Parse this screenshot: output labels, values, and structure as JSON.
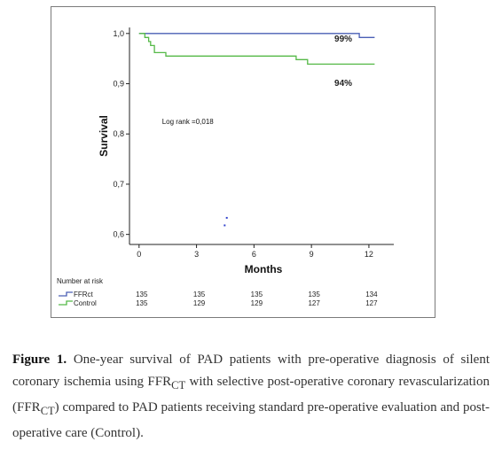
{
  "chart_data": {
    "type": "line",
    "xlabel": "Months",
    "ylabel": "Survival",
    "xlim": [
      -0.5,
      13.3
    ],
    "ylim": [
      0.58,
      1.012
    ],
    "x_ticks": [
      {
        "value": 0,
        "label": "0"
      },
      {
        "value": 3,
        "label": "3"
      },
      {
        "value": 6,
        "label": "6"
      },
      {
        "value": 9,
        "label": "9"
      },
      {
        "value": 12,
        "label": "12"
      }
    ],
    "y_ticks": [
      {
        "value": 1.0,
        "label": "1,0"
      },
      {
        "value": 0.9,
        "label": "0,9"
      },
      {
        "value": 0.8,
        "label": "0,8"
      },
      {
        "value": 0.7,
        "label": "0,7"
      },
      {
        "value": 0.6,
        "label": "0,6"
      }
    ],
    "series": [
      {
        "name": "FFRct",
        "color": "#4a5fb5",
        "step": true,
        "x": [
          0,
          11.5,
          12.3
        ],
        "y": [
          1.0,
          0.992,
          0.992
        ]
      },
      {
        "name": "Control",
        "color": "#55b947",
        "step": true,
        "x": [
          0,
          0.3,
          0.5,
          0.6,
          0.8,
          1.4,
          8.2,
          8.8,
          12.3
        ],
        "y": [
          1.0,
          0.992,
          0.984,
          0.976,
          0.962,
          0.955,
          0.948,
          0.939,
          0.939
        ]
      }
    ],
    "annotations": [
      {
        "text": "Log rank =0,018",
        "x": 1.2,
        "y": 0.82
      },
      {
        "text": "99%",
        "x": 10.2,
        "y": 0.984
      },
      {
        "text": "94%",
        "x": 10.2,
        "y": 0.896
      }
    ],
    "stray_points": [
      {
        "x": 4.58,
        "y": 0.633
      },
      {
        "x": 4.47,
        "y": 0.618
      }
    ],
    "risk_table": {
      "title": "Number at risk",
      "columns": [
        "0",
        "3",
        "6",
        "9",
        "12"
      ],
      "rows": [
        {
          "name": "FFRct",
          "values": [
            "135",
            "135",
            "135",
            "135",
            "134"
          ]
        },
        {
          "name": "Control",
          "values": [
            "135",
            "129",
            "129",
            "127",
            "127"
          ]
        }
      ]
    },
    "grid": false,
    "legend": "none"
  },
  "caption": {
    "label": "Figure 1.",
    "part1": "One-year survival of PAD patients with pre-operative diagnosis of silent coronary ischemia using FFR",
    "sub1": "CT",
    "part2": " with selective post-operative coronary revascularization (FFR",
    "sub2": "CT",
    "part3": ") compared to PAD patients receiving standard pre-operative evaluation and post-operative care (Control)."
  }
}
